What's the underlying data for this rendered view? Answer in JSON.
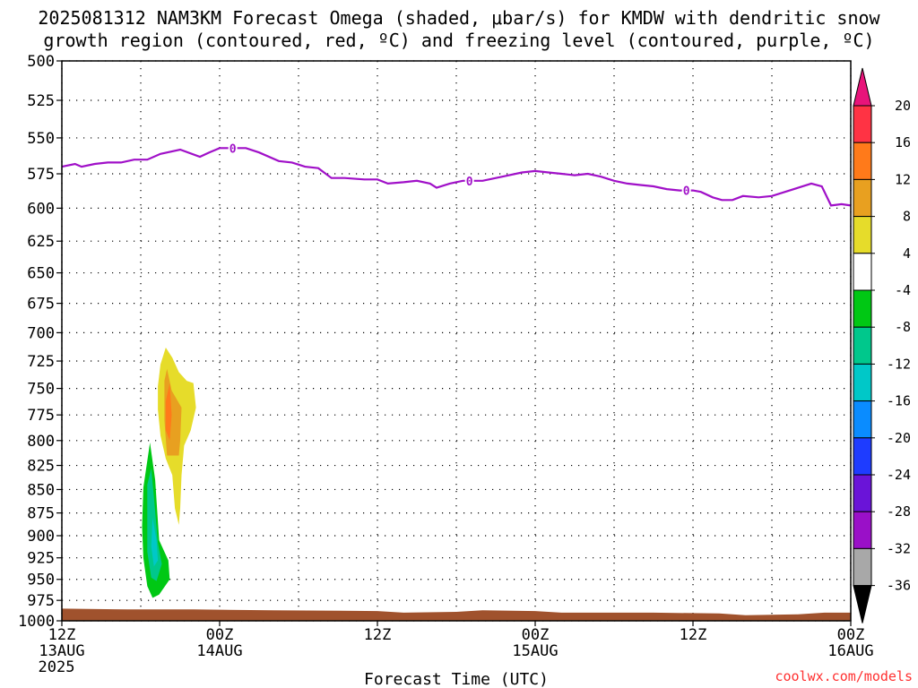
{
  "chart_data": {
    "type": "time-height",
    "title_line1": "2025081312 NAM3KM Forecast Omega (shaded, μbar/s) for KMDW with dendritic snow",
    "title_line2": "growth region (contoured, red, ºC) and freezing level (contoured, purple, ºC)",
    "xlabel": "Forecast Time (UTC)",
    "credit": "coolwx.com/models",
    "yaxis": {
      "range": [
        500,
        1000
      ],
      "ticks": [
        500,
        525,
        550,
        575,
        600,
        625,
        650,
        675,
        700,
        725,
        750,
        775,
        800,
        825,
        850,
        875,
        900,
        925,
        950,
        975,
        1000
      ],
      "scale": "log-pressure"
    },
    "xaxis": {
      "range_hours": [
        0,
        60
      ],
      "ticks": [
        {
          "hour": 0,
          "lines": [
            "12Z",
            "13AUG",
            "2025"
          ]
        },
        {
          "hour": 12,
          "lines": [
            "00Z",
            "14AUG"
          ]
        },
        {
          "hour": 24,
          "lines": [
            "12Z"
          ]
        },
        {
          "hour": 36,
          "lines": [
            "00Z",
            "15AUG"
          ]
        },
        {
          "hour": 48,
          "lines": [
            "12Z"
          ]
        },
        {
          "hour": 60,
          "lines": [
            "00Z",
            "16AUG"
          ]
        }
      ],
      "grid_every_hours": 6
    },
    "colorbar": {
      "labels": [
        "20",
        "16",
        "12",
        "8",
        "4",
        "-4",
        "-8",
        "-12",
        "-16",
        "-20",
        "-24",
        "-28",
        "-32",
        "-36"
      ],
      "colors": [
        "#ff3344",
        "#ff7a1a",
        "#e8a020",
        "#e6dc2a",
        "#ffffff",
        "#00c814",
        "#00c88c",
        "#00c8c8",
        "#0a8cff",
        "#1e3cff",
        "#6a14d8",
        "#9a10c8",
        "#a8a8a8"
      ],
      "top_arrow": "#e8147a",
      "bottom_arrow": "#000000"
    },
    "freezing_level": {
      "label": "0",
      "label_hours": [
        13,
        31,
        47.5
      ],
      "points": [
        [
          0,
          570
        ],
        [
          1,
          568
        ],
        [
          1.5,
          570
        ],
        [
          2.5,
          568
        ],
        [
          3.5,
          567
        ],
        [
          4.5,
          567
        ],
        [
          5.5,
          565
        ],
        [
          6.5,
          565
        ],
        [
          7.5,
          561
        ],
        [
          9,
          558
        ],
        [
          10.5,
          563
        ],
        [
          11.2,
          560
        ],
        [
          12,
          557
        ],
        [
          13,
          557
        ],
        [
          14,
          557
        ],
        [
          15,
          560
        ],
        [
          16.5,
          566
        ],
        [
          17.5,
          567
        ],
        [
          18.5,
          570
        ],
        [
          19.5,
          571
        ],
        [
          20.5,
          578
        ],
        [
          21.5,
          578
        ],
        [
          23,
          579
        ],
        [
          24,
          579
        ],
        [
          24.8,
          582
        ],
        [
          26,
          581
        ],
        [
          27,
          580
        ],
        [
          28,
          582
        ],
        [
          28.5,
          585
        ],
        [
          29.5,
          582
        ],
        [
          30.5,
          580
        ],
        [
          32,
          580
        ],
        [
          33.5,
          577
        ],
        [
          35,
          574
        ],
        [
          36,
          573
        ],
        [
          37,
          574
        ],
        [
          38,
          575
        ],
        [
          39,
          576
        ],
        [
          40,
          575
        ],
        [
          41,
          577
        ],
        [
          42,
          580
        ],
        [
          43,
          582
        ],
        [
          44,
          583
        ],
        [
          45,
          584
        ],
        [
          46,
          586
        ],
        [
          47,
          587
        ],
        [
          48,
          587
        ],
        [
          48.6,
          588
        ],
        [
          49.5,
          592
        ],
        [
          50.2,
          594
        ],
        [
          51,
          594
        ],
        [
          51.8,
          591
        ],
        [
          53,
          592
        ],
        [
          54,
          591
        ],
        [
          55,
          588
        ],
        [
          56,
          585
        ],
        [
          57,
          582
        ],
        [
          57.8,
          584
        ],
        [
          58.5,
          598
        ],
        [
          59.3,
          597
        ],
        [
          60,
          598
        ]
      ]
    },
    "omega_regions": [
      {
        "value_color": "#e6dc2a",
        "points": [
          [
            7.3,
            748
          ],
          [
            7.5,
            728
          ],
          [
            7.9,
            713
          ],
          [
            8.4,
            722
          ],
          [
            8.9,
            735
          ],
          [
            9.5,
            743
          ],
          [
            10.0,
            745
          ],
          [
            10.2,
            768
          ],
          [
            9.8,
            790
          ],
          [
            9.3,
            805
          ],
          [
            9.1,
            835
          ],
          [
            9.0,
            870
          ],
          [
            8.9,
            888
          ],
          [
            8.6,
            870
          ],
          [
            8.4,
            835
          ],
          [
            7.9,
            818
          ],
          [
            7.5,
            795
          ],
          [
            7.3,
            770
          ]
        ]
      },
      {
        "value_color": "#e8a020",
        "points": [
          [
            7.8,
            743
          ],
          [
            8.0,
            732
          ],
          [
            8.35,
            752
          ],
          [
            9.1,
            768
          ],
          [
            9.0,
            800
          ],
          [
            8.9,
            815
          ],
          [
            8.0,
            815
          ],
          [
            7.8,
            780
          ]
        ]
      },
      {
        "value_color": "#ff7a1a",
        "points": [
          [
            7.9,
            762
          ],
          [
            8.2,
            745
          ],
          [
            8.35,
            775
          ],
          [
            8.2,
            800
          ],
          [
            7.9,
            790
          ]
        ]
      },
      {
        "value_color": "#00c814",
        "points": [
          [
            6.2,
            848
          ],
          [
            6.7,
            802
          ],
          [
            7.1,
            840
          ],
          [
            7.4,
            905
          ],
          [
            8.1,
            928
          ],
          [
            8.2,
            950
          ],
          [
            7.4,
            968
          ],
          [
            6.9,
            972
          ],
          [
            6.5,
            958
          ],
          [
            6.2,
            925
          ],
          [
            6.1,
            890
          ]
        ]
      },
      {
        "value_color": "#00c88c",
        "points": [
          [
            6.5,
            845
          ],
          [
            6.8,
            828
          ],
          [
            7.0,
            858
          ],
          [
            7.3,
            908
          ],
          [
            7.6,
            932
          ],
          [
            7.2,
            952
          ],
          [
            6.8,
            948
          ],
          [
            6.5,
            918
          ]
        ]
      },
      {
        "value_color": "#00c8c8",
        "points": [
          [
            6.9,
            880
          ],
          [
            7.2,
            905
          ],
          [
            7.3,
            928
          ],
          [
            7.0,
            935
          ],
          [
            6.8,
            912
          ]
        ]
      }
    ],
    "terrain": {
      "color": "#a0522d",
      "top_pressure": [
        [
          0,
          985
        ],
        [
          5,
          986
        ],
        [
          10,
          986
        ],
        [
          16,
          987
        ],
        [
          24,
          988
        ],
        [
          26,
          990
        ],
        [
          30,
          989
        ],
        [
          32,
          987
        ],
        [
          36,
          988
        ],
        [
          38,
          990
        ],
        [
          45,
          990
        ],
        [
          50,
          991
        ],
        [
          52,
          993
        ],
        [
          56,
          992
        ],
        [
          58,
          990
        ],
        [
          60,
          990
        ]
      ]
    }
  }
}
